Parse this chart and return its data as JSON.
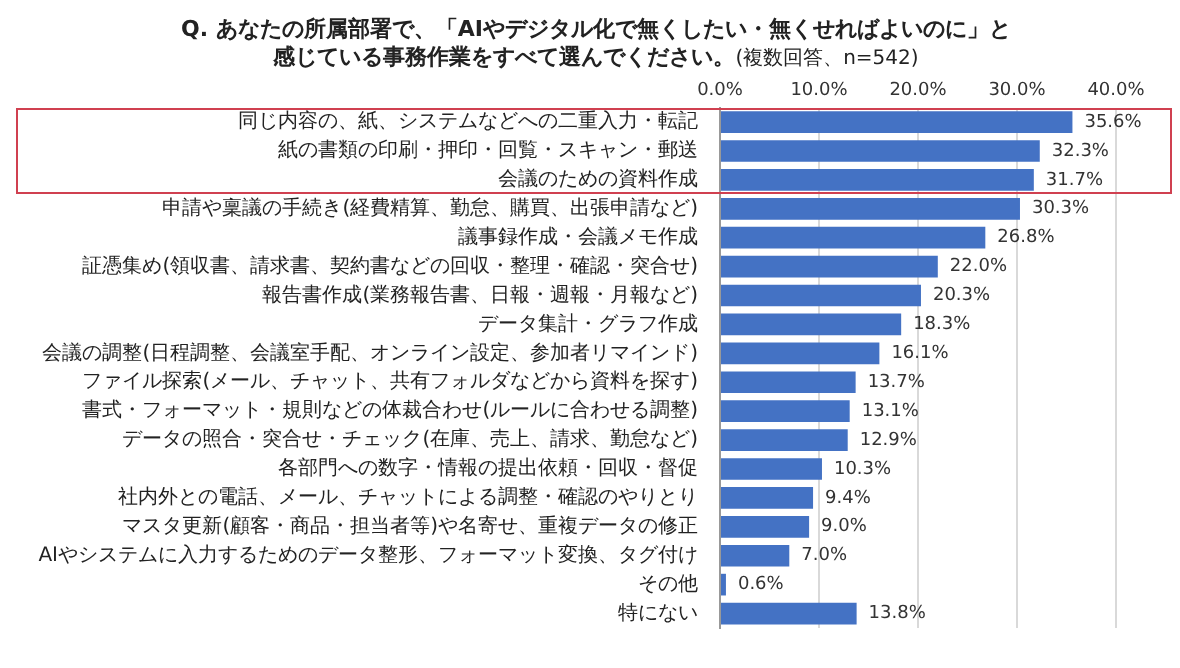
{
  "chart_data": {
    "type": "bar",
    "orientation": "horizontal",
    "title": "Q. あなたの所属部署で、「AIやデジタル化で無くしたい・無くせればよいのに」と",
    "subtitle": "感じている事務作業をすべて選んでください。",
    "annotations": [
      "(複数回答、n=542)"
    ],
    "categories": [
      "同じ内容の、紙、システムなどへの二重入力・転記",
      "紙の書類の印刷・押印・回覧・スキャン・郵送",
      "会議のための資料作成",
      "申請や稟議の手続き(経費精算、勤怠、購買、出張申請など)",
      "議事録作成・会議メモ作成",
      "証憑集め(領収書、請求書、契約書などの回収・整理・確認・突合せ)",
      "報告書作成(業務報告書、日報・週報・月報など)",
      "データ集計・グラフ作成",
      "会議の調整(日程調整、会議室手配、オンライン設定、参加者リマインド)",
      "ファイル探索(メール、チャット、共有フォルダなどから資料を探す)",
      "書式・フォーマット・規則などの体裁合わせ(ルールに合わせる調整)",
      "データの照合・突合せ・チェック(在庫、売上、請求、勤怠など)",
      "各部門への数字・情報の提出依頼・回収・督促",
      "社内外との電話、メール、チャットによる調整・確認のやりとり",
      "マスタ更新(顧客・商品・担当者等)や名寄せ、重複データの修正",
      "AIやシステムに入力するためのデータ整形、フォーマット変換、タグ付け",
      "その他",
      "特にない"
    ],
    "values": [
      35.6,
      32.3,
      31.7,
      30.3,
      26.8,
      22.0,
      20.3,
      18.3,
      16.1,
      13.7,
      13.1,
      12.9,
      10.3,
      9.4,
      9.0,
      7.0,
      0.6,
      13.8
    ],
    "value_labels": [
      "35.6%",
      "32.3%",
      "31.7%",
      "30.3%",
      "26.8%",
      "22.0%",
      "20.3%",
      "18.3%",
      "16.1%",
      "13.7%",
      "13.1%",
      "12.9%",
      "10.3%",
      "9.4%",
      "9.0%",
      "7.0%",
      "0.6%",
      "13.8%"
    ],
    "color": "#4472c4",
    "xlim": [
      0,
      40
    ],
    "xticks": [
      {
        "value": 0,
        "label": "0.0%"
      },
      {
        "value": 10,
        "label": "10.0%"
      },
      {
        "value": 20,
        "label": "20.0%"
      },
      {
        "value": 30,
        "label": "30.0%"
      },
      {
        "value": 40,
        "label": "40.0%"
      }
    ],
    "grid": "x",
    "legend": false
  }
}
